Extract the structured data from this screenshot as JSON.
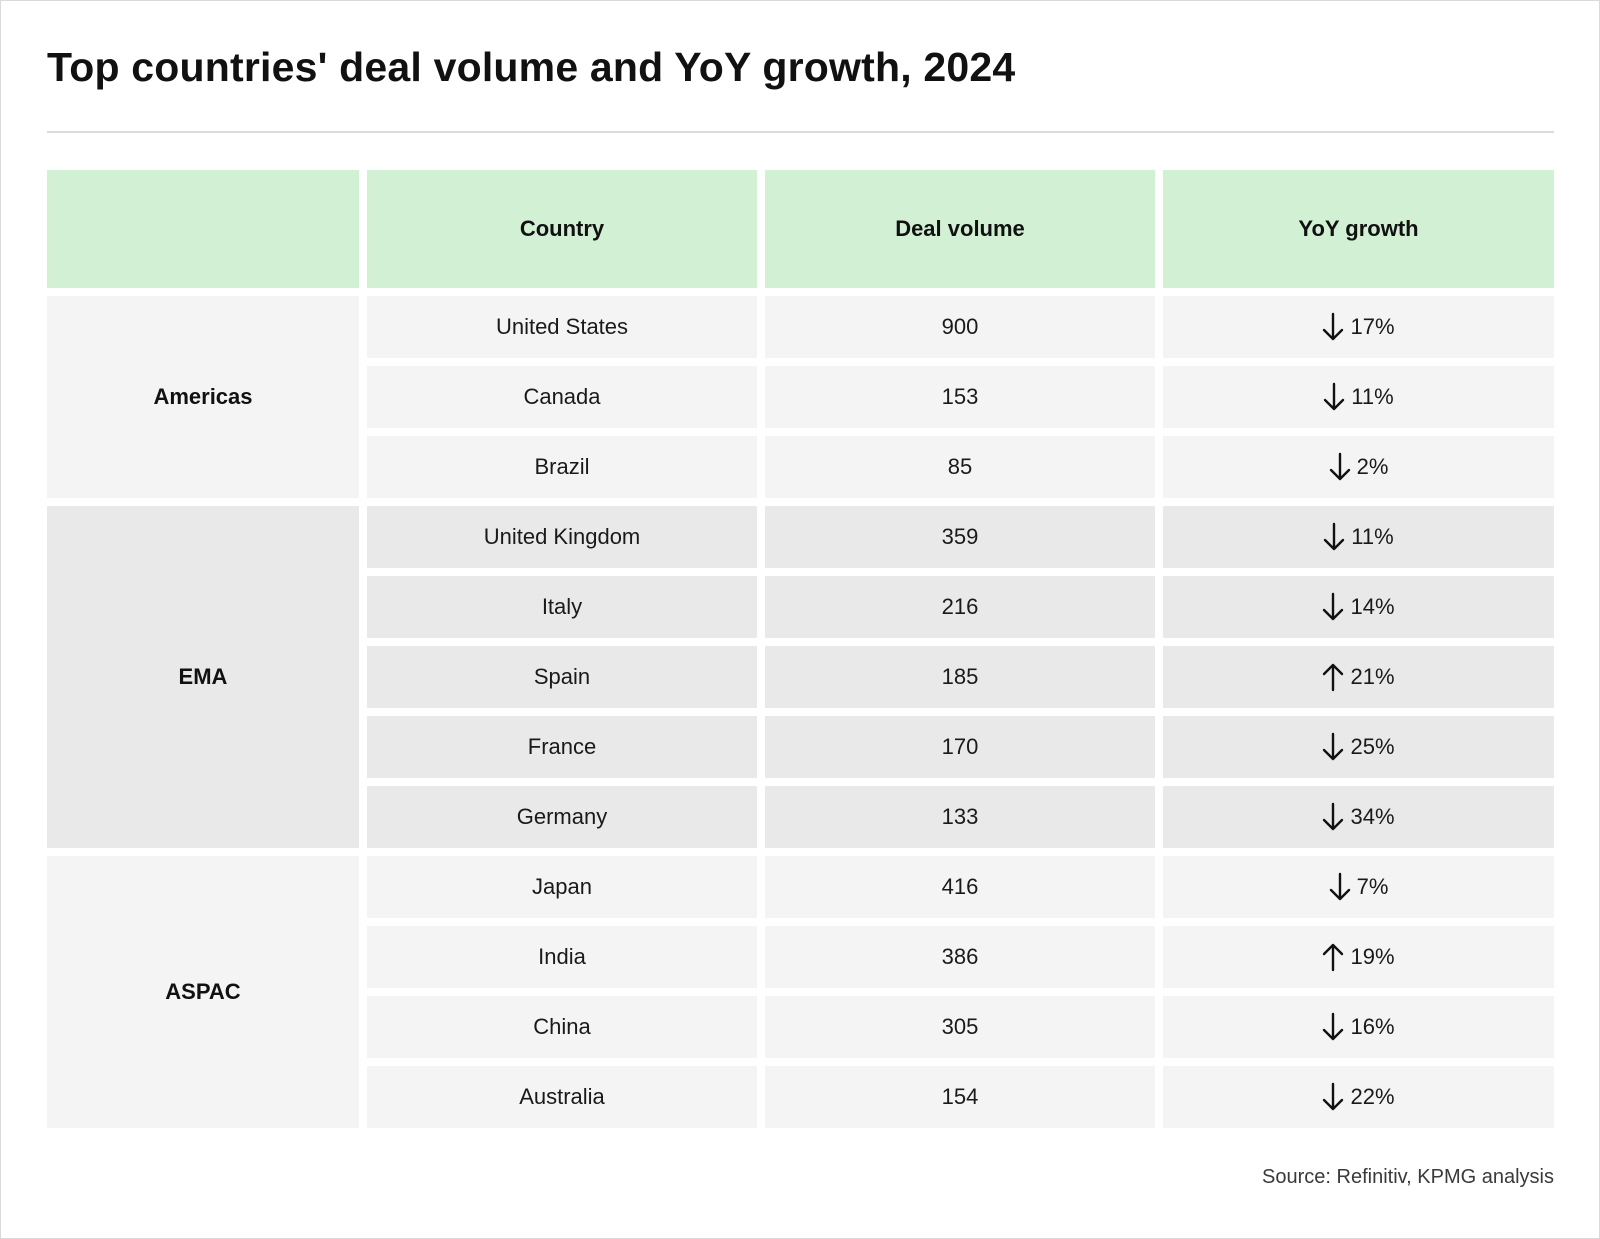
{
  "title": "Top countries' deal volume and YoY growth, 2024",
  "source": "Source: Refinitiv, KPMG analysis",
  "colors": {
    "header_bg": "#d2f1d4",
    "row_light": "#f4f4f4",
    "row_dark": "#e9e9e9"
  },
  "chart_data": {
    "type": "table",
    "title": "Top countries' deal volume and YoY growth, 2024",
    "columns": [
      "",
      "Country",
      "Deal volume",
      "YoY growth"
    ],
    "groups": [
      {
        "region": "Americas",
        "shade": "light",
        "rows": [
          {
            "country": "United States",
            "deal_volume": "900",
            "direction": "down",
            "growth": "17%"
          },
          {
            "country": "Canada",
            "deal_volume": "153",
            "direction": "down",
            "growth": "11%"
          },
          {
            "country": "Brazil",
            "deal_volume": "85",
            "direction": "down",
            "growth": "2%"
          }
        ]
      },
      {
        "region": "EMA",
        "shade": "dark",
        "rows": [
          {
            "country": "United Kingdom",
            "deal_volume": "359",
            "direction": "down",
            "growth": "11%"
          },
          {
            "country": "Italy",
            "deal_volume": "216",
            "direction": "down",
            "growth": "14%"
          },
          {
            "country": "Spain",
            "deal_volume": "185",
            "direction": "up",
            "growth": "21%"
          },
          {
            "country": "France",
            "deal_volume": "170",
            "direction": "down",
            "growth": "25%"
          },
          {
            "country": "Germany",
            "deal_volume": "133",
            "direction": "down",
            "growth": "34%"
          }
        ]
      },
      {
        "region": "ASPAC",
        "shade": "light",
        "rows": [
          {
            "country": "Japan",
            "deal_volume": "416",
            "direction": "down",
            "growth": "7%"
          },
          {
            "country": "India",
            "deal_volume": "386",
            "direction": "up",
            "growth": "19%"
          },
          {
            "country": "China",
            "deal_volume": "305",
            "direction": "down",
            "growth": "16%"
          },
          {
            "country": "Australia",
            "deal_volume": "154",
            "direction": "down",
            "growth": "22%"
          }
        ]
      }
    ]
  }
}
